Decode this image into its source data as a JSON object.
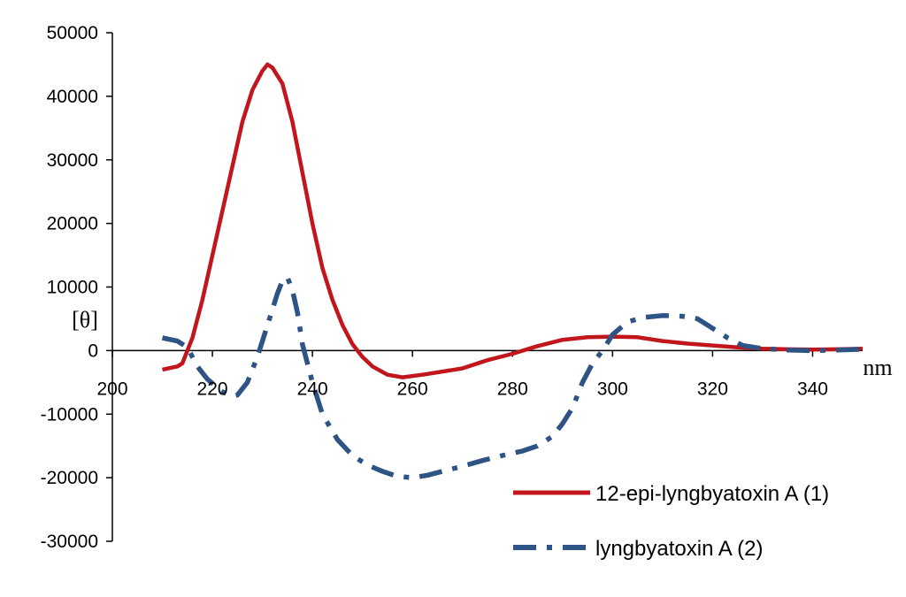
{
  "chart_data": {
    "type": "line",
    "title": "",
    "xlabel": "nm",
    "ylabel": "[θ]",
    "xlim": [
      200,
      350
    ],
    "ylim": [
      -30000,
      50000
    ],
    "x_ticks": [
      200,
      220,
      240,
      260,
      280,
      300,
      320,
      340
    ],
    "y_ticks": [
      50000,
      40000,
      30000,
      20000,
      10000,
      0,
      -10000,
      -20000,
      -30000
    ],
    "grid": false,
    "legend_position": "bottom-right",
    "series": [
      {
        "name": "12-epi-lyngbyatoxin A (1)",
        "color": "#c0161c",
        "style": "solid",
        "points": [
          [
            210,
            -3000
          ],
          [
            213,
            -2500
          ],
          [
            214,
            -2000
          ],
          [
            216,
            2000
          ],
          [
            218,
            8000
          ],
          [
            220,
            15000
          ],
          [
            222,
            22000
          ],
          [
            224,
            29000
          ],
          [
            226,
            36000
          ],
          [
            228,
            41000
          ],
          [
            230,
            44000
          ],
          [
            231,
            45000
          ],
          [
            232,
            44500
          ],
          [
            234,
            42000
          ],
          [
            236,
            36000
          ],
          [
            238,
            28000
          ],
          [
            240,
            20000
          ],
          [
            242,
            13000
          ],
          [
            244,
            8000
          ],
          [
            246,
            4000
          ],
          [
            248,
            1000
          ],
          [
            250,
            -1000
          ],
          [
            252,
            -2500
          ],
          [
            255,
            -3800
          ],
          [
            258,
            -4200
          ],
          [
            262,
            -3800
          ],
          [
            266,
            -3300
          ],
          [
            270,
            -2800
          ],
          [
            275,
            -1500
          ],
          [
            280,
            -500
          ],
          [
            285,
            700
          ],
          [
            290,
            1700
          ],
          [
            295,
            2100
          ],
          [
            300,
            2200
          ],
          [
            305,
            2100
          ],
          [
            310,
            1500
          ],
          [
            315,
            1100
          ],
          [
            320,
            800
          ],
          [
            325,
            500
          ],
          [
            330,
            300
          ],
          [
            335,
            200
          ],
          [
            340,
            150
          ],
          [
            345,
            200
          ],
          [
            350,
            300
          ]
        ]
      },
      {
        "name": "lyngbyatoxin A (2)",
        "color": "#2e5385",
        "style": "dash-dot",
        "points": [
          [
            210,
            2000
          ],
          [
            213,
            1500
          ],
          [
            215,
            500
          ],
          [
            217,
            -2500
          ],
          [
            219,
            -4500
          ],
          [
            222,
            -6500
          ],
          [
            224,
            -7200
          ],
          [
            225,
            -7000
          ],
          [
            227,
            -5000
          ],
          [
            229,
            -1000
          ],
          [
            231,
            4000
          ],
          [
            233,
            9000
          ],
          [
            234,
            11000
          ],
          [
            235,
            11500
          ],
          [
            236,
            9500
          ],
          [
            237,
            6000
          ],
          [
            238,
            1000
          ],
          [
            240,
            -5000
          ],
          [
            242,
            -10000
          ],
          [
            245,
            -14000
          ],
          [
            248,
            -16500
          ],
          [
            251,
            -18000
          ],
          [
            254,
            -19000
          ],
          [
            257,
            -19800
          ],
          [
            260,
            -20000
          ],
          [
            263,
            -19600
          ],
          [
            266,
            -19000
          ],
          [
            270,
            -18200
          ],
          [
            274,
            -17300
          ],
          [
            278,
            -16500
          ],
          [
            282,
            -15800
          ],
          [
            285,
            -15000
          ],
          [
            288,
            -13500
          ],
          [
            290,
            -11500
          ],
          [
            292,
            -9000
          ],
          [
            294,
            -5000
          ],
          [
            296,
            -2000
          ],
          [
            298,
            0
          ],
          [
            300,
            2500
          ],
          [
            303,
            4500
          ],
          [
            306,
            5200
          ],
          [
            310,
            5500
          ],
          [
            314,
            5400
          ],
          [
            317,
            5000
          ],
          [
            320,
            3500
          ],
          [
            323,
            2000
          ],
          [
            326,
            800
          ],
          [
            330,
            300
          ],
          [
            335,
            100
          ],
          [
            340,
            0
          ],
          [
            345,
            100
          ],
          [
            350,
            200
          ]
        ]
      }
    ]
  }
}
